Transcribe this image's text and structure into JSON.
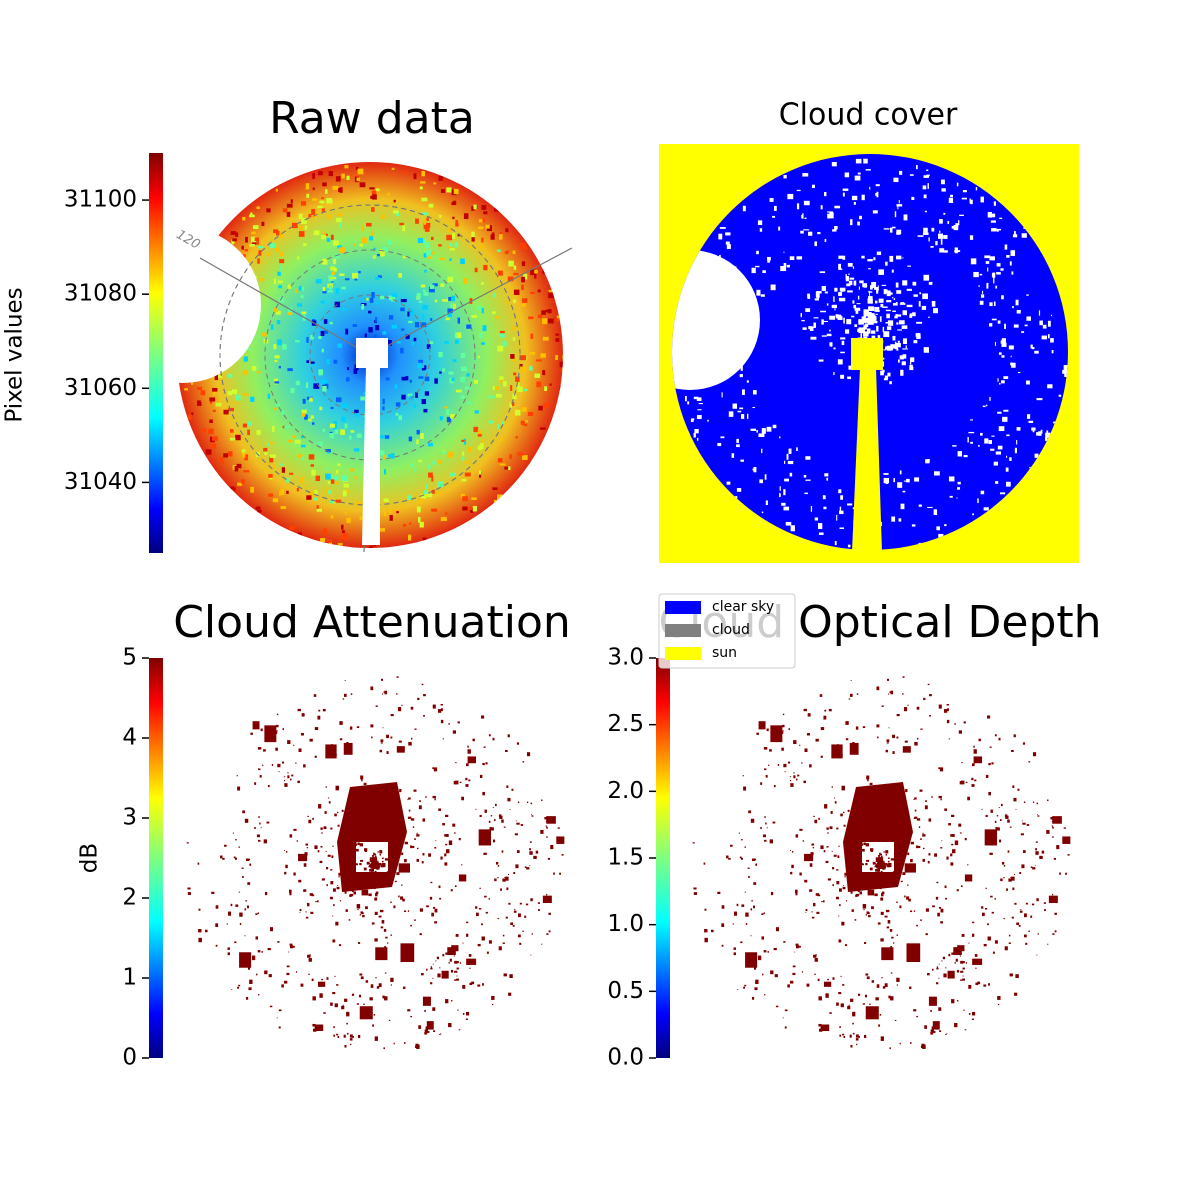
{
  "chart_data": [
    {
      "type": "image",
      "title": "Raw data",
      "colorbar": {
        "label": "Pixel values",
        "ylim": [
          31025,
          31110
        ],
        "yticks": [
          31040,
          31060,
          31080,
          31100
        ]
      },
      "annotations": [
        "120"
      ]
    },
    {
      "type": "image",
      "title": "Cloud cover",
      "series": [
        {
          "name": "clear sky",
          "color": "#0000ff"
        },
        {
          "name": "cloud",
          "color": "#808080"
        },
        {
          "name": "sun",
          "color": "#ffff00"
        }
      ]
    },
    {
      "type": "image",
      "title": "Cloud Attenuation",
      "colorbar": {
        "label": "dB",
        "ylim": [
          0,
          5
        ],
        "yticks": [
          0,
          1,
          2,
          3,
          4,
          5
        ]
      }
    },
    {
      "type": "image",
      "title": "Cloud Optical Depth",
      "colorbar": {
        "ylim": [
          0,
          3
        ],
        "yticks": [
          {
            "value": 0,
            "label": "0.0"
          },
          0.5,
          {
            "value": 1,
            "label": "1.0"
          },
          1.5,
          {
            "value": 2,
            "label": "2.0"
          },
          2.5,
          {
            "value": 3,
            "label": "3.0"
          }
        ]
      }
    }
  ]
}
